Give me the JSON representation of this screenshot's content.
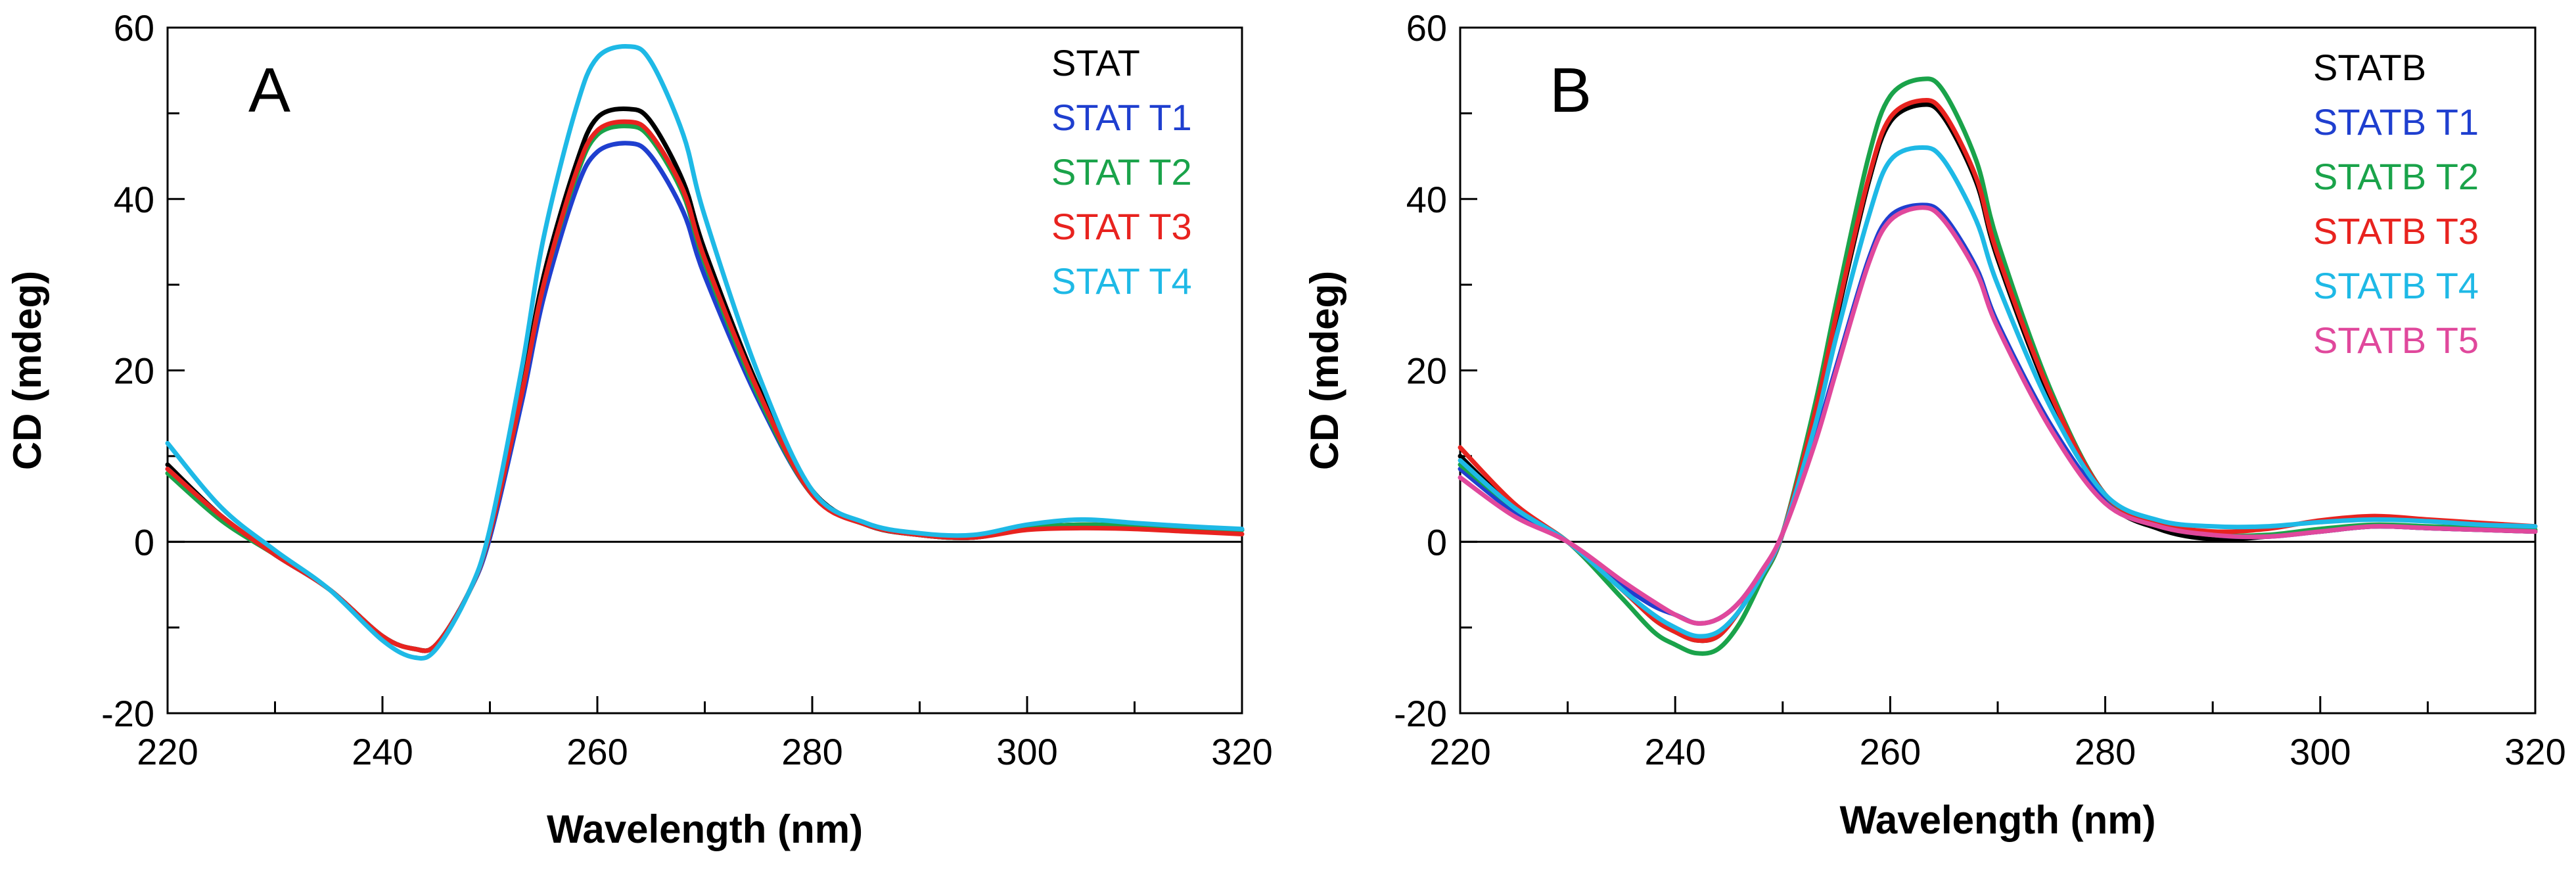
{
  "figure": {
    "panels": [
      "A",
      "B"
    ]
  },
  "chart_data": [
    {
      "type": "line",
      "panel_label": "A",
      "xlabel": "Wavelength (nm)",
      "ylabel": "CD (mdeg)",
      "xlim": [
        220,
        320
      ],
      "ylim": [
        -20,
        60
      ],
      "xticks": [
        220,
        240,
        260,
        280,
        300,
        320
      ],
      "yticks": [
        -20,
        0,
        20,
        40,
        60
      ],
      "x_minor_step": 10,
      "y_minor_step": 10,
      "zero_line": true,
      "legend_position": "top-right",
      "series": [
        {
          "name": "STAT",
          "color": "#000000",
          "x": [
            220,
            225,
            230,
            235,
            240,
            243,
            245,
            248,
            250,
            253,
            255,
            258,
            260,
            263,
            265,
            268,
            270,
            275,
            280,
            285,
            290,
            295,
            300,
            305,
            310,
            315,
            320
          ],
          "y": [
            9,
            3,
            -1.5,
            -5.5,
            -11,
            -12.5,
            -12,
            -6,
            1,
            18,
            31,
            44,
            49.5,
            50.5,
            49,
            42,
            34,
            18,
            6,
            2,
            0.8,
            0.5,
            1.6,
            2,
            1.8,
            1.5,
            1.4
          ]
        },
        {
          "name": "STAT T1",
          "color": "#1f3fcf",
          "x": [
            220,
            225,
            230,
            235,
            240,
            243,
            245,
            248,
            250,
            253,
            255,
            258,
            260,
            263,
            265,
            268,
            270,
            275,
            280,
            285,
            290,
            295,
            300,
            305,
            310,
            315,
            320
          ],
          "y": [
            8.5,
            3,
            -1.5,
            -5.5,
            -11,
            -12.5,
            -12,
            -6,
            0.5,
            16.5,
            28.5,
            41,
            45.5,
            46.5,
            45,
            38.5,
            31,
            16.5,
            5.5,
            2,
            0.8,
            0.5,
            1.6,
            2,
            1.8,
            1.5,
            1.4
          ]
        },
        {
          "name": "STAT T2",
          "color": "#1aa34a",
          "x": [
            220,
            225,
            230,
            235,
            240,
            243,
            245,
            248,
            250,
            253,
            255,
            258,
            260,
            263,
            265,
            268,
            270,
            275,
            280,
            285,
            290,
            295,
            300,
            305,
            310,
            315,
            320
          ],
          "y": [
            8,
            2.5,
            -1.5,
            -5.5,
            -11,
            -12.5,
            -12,
            -6,
            1,
            17.5,
            30,
            42.5,
            47.5,
            48.5,
            47,
            40.5,
            32.5,
            17,
            5.5,
            2,
            0.8,
            0.5,
            1.6,
            2,
            1.8,
            1.5,
            1.4
          ]
        },
        {
          "name": "STAT T3",
          "color": "#e8231f",
          "x": [
            220,
            225,
            230,
            235,
            240,
            243,
            245,
            248,
            250,
            253,
            255,
            258,
            260,
            263,
            265,
            268,
            270,
            275,
            280,
            285,
            290,
            295,
            300,
            305,
            310,
            315,
            320
          ],
          "y": [
            8.5,
            3,
            -1.5,
            -5.5,
            -11,
            -12.5,
            -12,
            -6,
            1,
            17.5,
            30,
            43,
            48,
            49,
            47.5,
            41,
            33,
            17.5,
            5.5,
            2,
            0.8,
            0.5,
            1.4,
            1.6,
            1.5,
            1.2,
            0.9
          ]
        },
        {
          "name": "STAT T4",
          "color": "#1eb9e6",
          "x": [
            220,
            225,
            230,
            235,
            240,
            243,
            245,
            248,
            250,
            253,
            255,
            258,
            260,
            263,
            265,
            268,
            270,
            275,
            280,
            285,
            290,
            295,
            300,
            305,
            310,
            315,
            320
          ],
          "y": [
            11.5,
            4,
            -1,
            -5.5,
            -11.5,
            -13.5,
            -12.5,
            -6,
            1.5,
            20.5,
            35.5,
            50.5,
            56.5,
            57.8,
            56,
            47.5,
            38,
            19.5,
            6,
            2.2,
            1,
            0.8,
            2,
            2.6,
            2.2,
            1.8,
            1.5
          ]
        }
      ]
    },
    {
      "type": "line",
      "panel_label": "B",
      "xlabel": "Wavelength (nm)",
      "ylabel": "CD (mdeg)",
      "xlim": [
        220,
        320
      ],
      "ylim": [
        -20,
        60
      ],
      "xticks": [
        220,
        240,
        260,
        280,
        300,
        320
      ],
      "yticks": [
        -20,
        0,
        20,
        40,
        60
      ],
      "x_minor_step": 10,
      "y_minor_step": 10,
      "zero_line": true,
      "legend_position": "top-right",
      "series": [
        {
          "name": "STATB",
          "color": "#000000",
          "x": [
            220,
            225,
            230,
            235,
            238,
            240,
            242,
            244,
            246,
            248,
            250,
            253,
            255,
            258,
            260,
            263,
            265,
            268,
            270,
            275,
            280,
            285,
            290,
            295,
            300,
            305,
            310,
            315,
            320
          ],
          "y": [
            10,
            4,
            0,
            -5.5,
            -9,
            -10.5,
            -11.5,
            -11,
            -8,
            -4,
            1,
            15,
            26,
            42,
            49,
            51,
            49.5,
            42,
            33,
            16.5,
            5,
            1.5,
            0.3,
            0.6,
            1.2,
            1.8,
            1.6,
            1.4,
            1.2
          ]
        },
        {
          "name": "STATB T1",
          "color": "#1f3fcf",
          "x": [
            220,
            225,
            230,
            235,
            238,
            240,
            242,
            244,
            246,
            248,
            250,
            253,
            255,
            258,
            260,
            263,
            265,
            268,
            270,
            275,
            280,
            285,
            290,
            295,
            300,
            305,
            310,
            315,
            320
          ],
          "y": [
            8.5,
            3.5,
            0,
            -5,
            -7.5,
            -8.5,
            -9.5,
            -9,
            -7,
            -3.5,
            1,
            12,
            20.5,
            33,
            38,
            39.3,
            38,
            32,
            25.5,
            13.5,
            5,
            2,
            0.8,
            0.6,
            1.2,
            1.8,
            1.6,
            1.4,
            1.2
          ]
        },
        {
          "name": "STATB T2",
          "color": "#1aa34a",
          "x": [
            220,
            225,
            230,
            235,
            238,
            240,
            242,
            244,
            246,
            248,
            250,
            253,
            255,
            258,
            260,
            263,
            265,
            268,
            270,
            275,
            280,
            285,
            290,
            295,
            300,
            305,
            310,
            315,
            320
          ],
          "y": [
            9,
            4,
            0,
            -6.5,
            -10.5,
            -12,
            -13,
            -12.5,
            -9.5,
            -4.5,
            1,
            16,
            28,
            45,
            52,
            54,
            52.5,
            44.5,
            35,
            17.5,
            5.5,
            2,
            0.8,
            0.8,
            1.5,
            2,
            1.8,
            1.6,
            1.4
          ]
        },
        {
          "name": "STATB T3",
          "color": "#e8231f",
          "x": [
            220,
            225,
            230,
            235,
            238,
            240,
            242,
            244,
            246,
            248,
            250,
            253,
            255,
            258,
            260,
            263,
            265,
            268,
            270,
            275,
            280,
            285,
            290,
            295,
            300,
            305,
            310,
            315,
            320
          ],
          "y": [
            11,
            4.5,
            0,
            -5.5,
            -9,
            -10.5,
            -11.5,
            -11,
            -8,
            -4,
            1,
            15,
            26.5,
            42.5,
            49.5,
            51.5,
            50,
            42.5,
            33.5,
            17,
            5.5,
            2.2,
            1.2,
            1.5,
            2.5,
            3,
            2.6,
            2.2,
            1.8
          ]
        },
        {
          "name": "STATB T4",
          "color": "#1eb9e6",
          "x": [
            220,
            225,
            230,
            235,
            238,
            240,
            242,
            244,
            246,
            248,
            250,
            253,
            255,
            258,
            260,
            263,
            265,
            268,
            270,
            275,
            280,
            285,
            290,
            295,
            300,
            305,
            310,
            315,
            320
          ],
          "y": [
            9.5,
            4,
            0,
            -5.5,
            -8.5,
            -10,
            -11,
            -10.5,
            -8,
            -4,
            1,
            13.5,
            24,
            38,
            44.5,
            46,
            44.5,
            37.5,
            30,
            15.5,
            5.5,
            2.5,
            1.8,
            1.8,
            2.3,
            2.6,
            2.4,
            2,
            1.8
          ]
        },
        {
          "name": "STATB T5",
          "color": "#e0489c",
          "x": [
            220,
            225,
            230,
            235,
            238,
            240,
            242,
            244,
            246,
            248,
            250,
            253,
            255,
            258,
            260,
            263,
            265,
            268,
            270,
            275,
            280,
            285,
            290,
            295,
            300,
            305,
            310,
            315,
            320
          ],
          "y": [
            7.5,
            3,
            0,
            -4.5,
            -7,
            -8.5,
            -9.5,
            -9,
            -7,
            -3.5,
            1,
            11.5,
            20,
            32.5,
            37.5,
            39,
            37.5,
            31.5,
            25,
            13,
            4.5,
            1.8,
            0.8,
            0.6,
            1.2,
            1.8,
            1.6,
            1.4,
            1.2
          ]
        }
      ]
    }
  ]
}
